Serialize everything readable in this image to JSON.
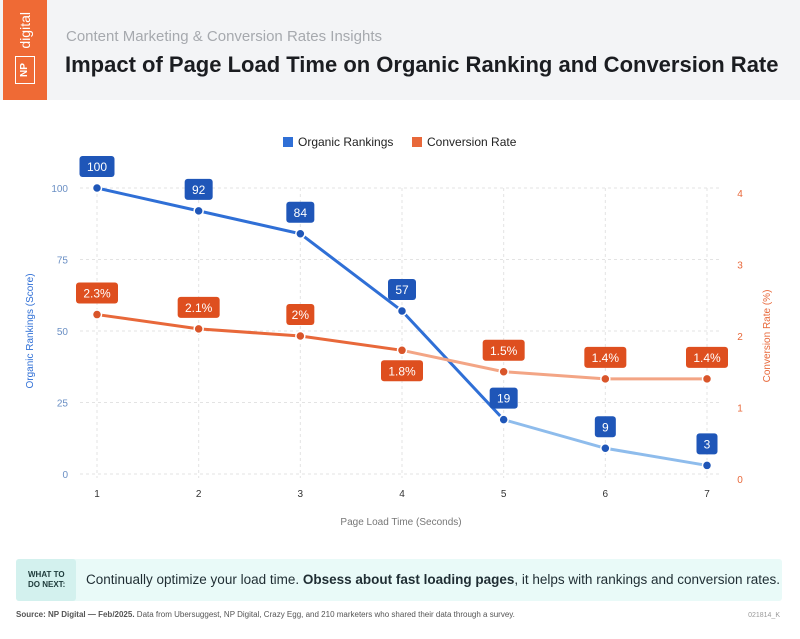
{
  "header": {
    "logo_text": "NP digital",
    "subtitle": "Content Marketing & Conversion Rates Insights",
    "title": "Impact of Page Load Time on Organic Ranking and Conversion Rate"
  },
  "colors": {
    "organic": "#2f6fd6",
    "organic_light": "#8ebcec",
    "conversion": "#e8683a",
    "conversion_light": "#f3a585",
    "brand": "#ef6a35"
  },
  "chart_data": {
    "type": "line",
    "x": [
      1,
      2,
      3,
      4,
      5,
      6,
      7
    ],
    "xlabel": "Page Load Time (Seconds)",
    "ylabel": "Organic Rankings (Score)",
    "y2label": "Conversion Rate (%)",
    "ylim": [
      0,
      100
    ],
    "y2lim": [
      0,
      4
    ],
    "yticks": [
      0,
      25,
      50,
      75,
      100
    ],
    "y2ticks": [
      0,
      1,
      2,
      3,
      4
    ],
    "grid": true,
    "legend": "top-center",
    "series": [
      {
        "name": "Organic Rankings",
        "axis": "left",
        "values": [
          100,
          92,
          84,
          57,
          19,
          9,
          3
        ],
        "labels": [
          "100",
          "92",
          "84",
          "57",
          "19",
          "9",
          "3"
        ]
      },
      {
        "name": "Conversion Rate",
        "axis": "right",
        "values": [
          2.3,
          2.1,
          2.0,
          1.8,
          1.5,
          1.4,
          1.4
        ],
        "labels": [
          "2.3%",
          "2.1%",
          "2%",
          "1.8%",
          "1.5%",
          "1.4%",
          "1.4%"
        ]
      }
    ]
  },
  "tip": {
    "label_line1": "WHAT TO",
    "label_line2": "DO NEXT:",
    "text_a": "Continually optimize your load time. ",
    "text_bold": "Obsess about fast loading pages",
    "text_b": ", it helps with rankings and conversion rates."
  },
  "footer": {
    "source_bold": "Source: NP Digital — Feb/2025.",
    "source": " Data from Ubersuggest, NP Digital, Crazy Egg, and 210 marketers who shared their data through a survey.",
    "code": "021814_K"
  }
}
